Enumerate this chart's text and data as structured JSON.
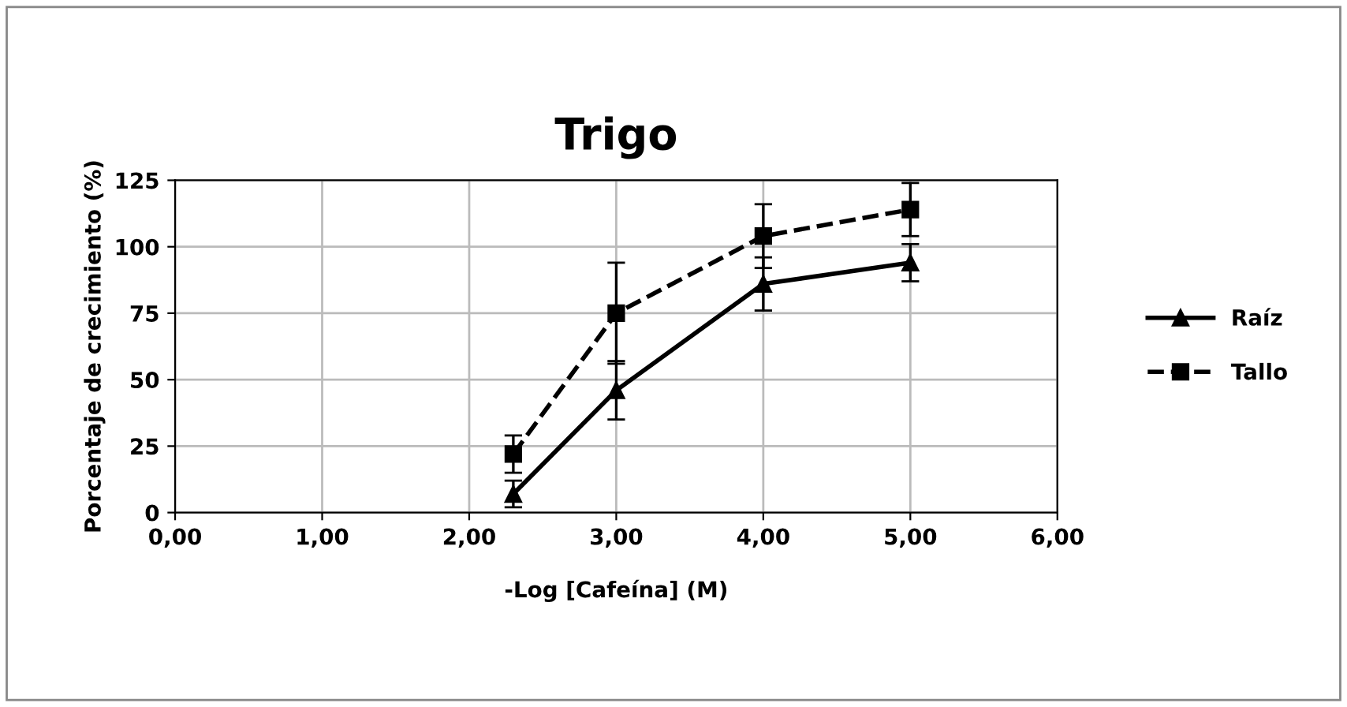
{
  "chart_data": {
    "type": "line",
    "title": "Trigo",
    "xlabel": "-Log [Cafeína] (M)",
    "ylabel": "Porcentaje de crecimiento (%)",
    "xlim": [
      0,
      6
    ],
    "xticks": [
      {
        "value": 0,
        "label": "0,00"
      },
      {
        "value": 1,
        "label": "1,00"
      },
      {
        "value": 2,
        "label": "2,00"
      },
      {
        "value": 3,
        "label": "3,00"
      },
      {
        "value": 4,
        "label": "4,00"
      },
      {
        "value": 5,
        "label": "5,00"
      },
      {
        "value": 6,
        "label": "6,00"
      }
    ],
    "ylim": [
      0,
      125
    ],
    "yticks": [
      0,
      25,
      50,
      75,
      100,
      125
    ],
    "grid": true,
    "legend": "right",
    "x": [
      2.3,
      3,
      4,
      5
    ],
    "series": [
      {
        "name": "Raíz",
        "color": "#000000",
        "marker": "triangle",
        "line_style": "solid",
        "values": [
          7,
          46,
          86,
          94
        ],
        "errors": [
          5,
          11,
          10,
          7
        ]
      },
      {
        "name": "Tallo",
        "color": "#000000",
        "marker": "square",
        "line_style": "dashed",
        "values": [
          22,
          75,
          104,
          114
        ],
        "errors": [
          7,
          19,
          12,
          10
        ]
      }
    ]
  }
}
